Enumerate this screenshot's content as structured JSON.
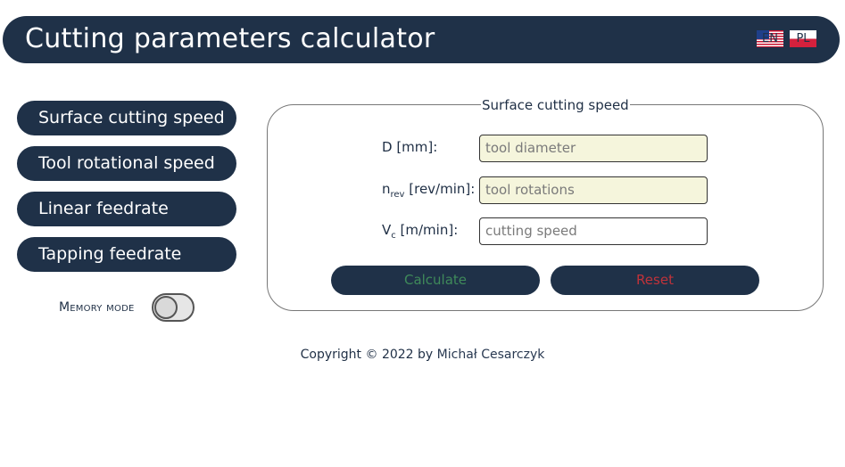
{
  "header": {
    "title": "Cutting parameters calculator",
    "languages": [
      {
        "code": "EN",
        "flag": "us-flag-icon"
      },
      {
        "code": "PL",
        "flag": "pl-flag-icon"
      }
    ]
  },
  "sidebar": {
    "items": [
      {
        "label": "Surface cutting speed"
      },
      {
        "label": "Tool rotational speed"
      },
      {
        "label": "Linear feedrate"
      },
      {
        "label": "Tapping feedrate"
      }
    ],
    "memory_mode": {
      "label": "Memory mode",
      "enabled": false
    }
  },
  "form": {
    "legend": "Surface cutting speed",
    "fields": [
      {
        "label_main": "D",
        "label_sub": "",
        "label_unit": " [mm]:",
        "placeholder": "tool diameter"
      },
      {
        "label_main": "n",
        "label_sub": "rev",
        "label_unit": " [rev/min]:",
        "placeholder": "tool rotations"
      },
      {
        "label_main": "V",
        "label_sub": "c",
        "label_unit": " [m/min]:",
        "placeholder": "cutting speed"
      }
    ],
    "calculate_label": "Calculate",
    "reset_label": "Reset"
  },
  "colors": {
    "navy": "#1f3148",
    "calculate_text": "#3f8a5a",
    "reset_text": "#c0323a",
    "input_filled": "#f5f5dc"
  },
  "footer": {
    "copyright": "Copyright © 2022 by ",
    "author": "Michał Cesarczyk"
  }
}
